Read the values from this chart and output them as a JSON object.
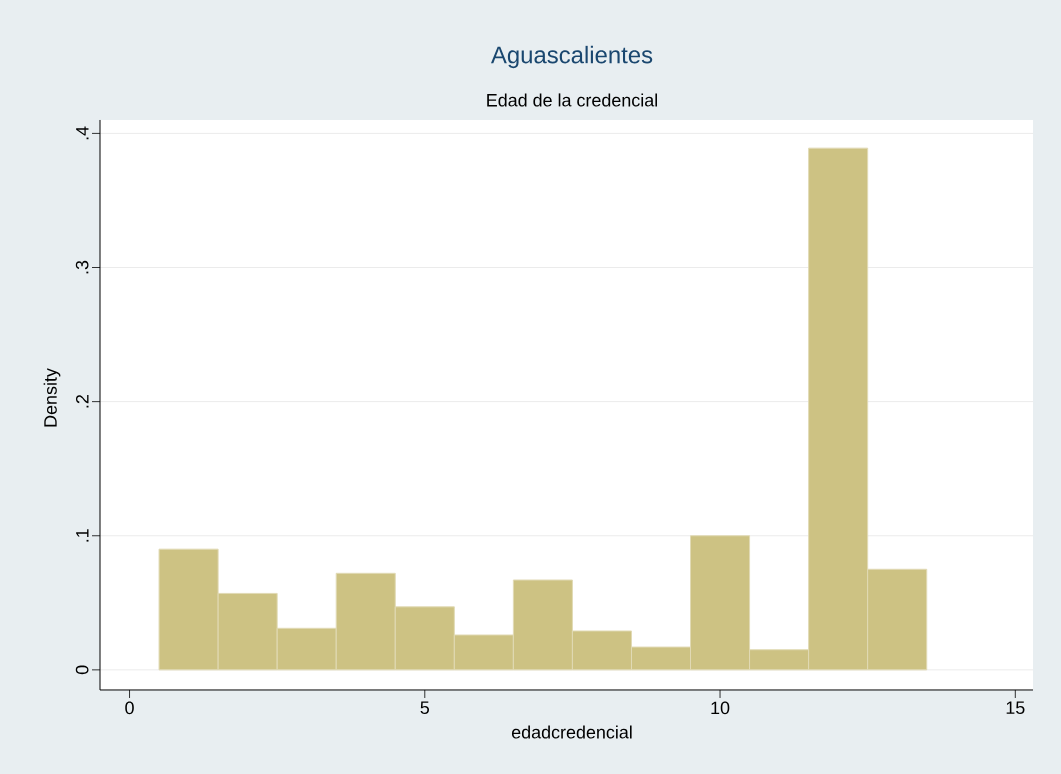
{
  "chart_data": {
    "type": "histogram",
    "title": "Aguascalientes",
    "subtitle": "Edad de la credencial",
    "xlabel": "edadcredencial",
    "ylabel": "Density",
    "bins": [
      0.5,
      1.5,
      2.5,
      3.5,
      4.5,
      5.5,
      6.5,
      7.5,
      8.5,
      9.5,
      10.5,
      11.5,
      12.5,
      13.5
    ],
    "values": [
      0.09,
      0.057,
      0.031,
      0.072,
      0.047,
      0.026,
      0.067,
      0.029,
      0.017,
      0.1,
      0.015,
      0.389,
      0.075
    ],
    "color": "#cdc283",
    "xlim": [
      -0.5,
      15.3
    ],
    "ylim": [
      -0.015,
      0.41
    ],
    "xticks": [
      0,
      5,
      10,
      15
    ],
    "yticks": [
      0,
      {
        "value": 0.1,
        "label": ".1"
      },
      {
        "value": 0.2,
        "label": ".2"
      },
      {
        "value": 0.3,
        "label": ".3"
      },
      {
        "value": 0.4,
        "label": ".4"
      }
    ],
    "grid": "y"
  }
}
